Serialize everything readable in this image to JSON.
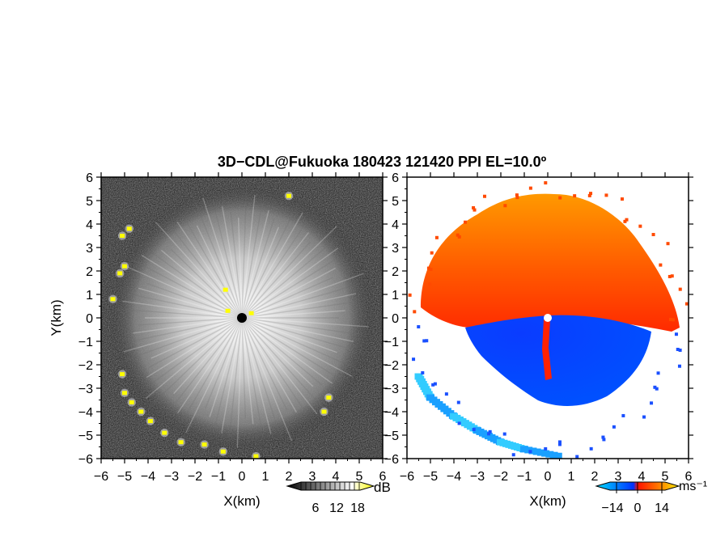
{
  "title": "3D−CDL@Fukuoka 180423 121420 PPI EL=10.0º",
  "chart_data": [
    {
      "type": "heatmap",
      "quantity": "dB",
      "xlabel": "X(km)",
      "ylabel": "Y(km)",
      "xlim": [
        -6,
        6
      ],
      "ylim": [
        -6,
        6
      ],
      "x_ticks": [
        "−6",
        "−5",
        "−4",
        "−3",
        "−2",
        "−1",
        "0",
        "1",
        "2",
        "3",
        "4",
        "5",
        "6"
      ],
      "y_ticks": [
        "−6",
        "−5",
        "−4",
        "−3",
        "−2",
        "−1",
        "0",
        "1",
        "2",
        "3",
        "4",
        "5",
        "6"
      ],
      "colorbar": {
        "unit": "dB",
        "ticks": [
          "6",
          "12",
          "18"
        ],
        "range": [
          0,
          24
        ],
        "colors": [
          "#000000",
          "#ffffff",
          "#ffff00"
        ]
      },
      "features": {
        "radar_center": [
          0,
          0
        ],
        "data_radius_km": 5.4,
        "high_echo_points": [
          [
            -5.1,
            3.5
          ],
          [
            -4.8,
            3.8
          ],
          [
            -5.0,
            2.2
          ],
          [
            -5.2,
            1.9
          ],
          [
            -5.5,
            0.8
          ],
          [
            -5.1,
            -2.4
          ],
          [
            -5.0,
            -3.2
          ],
          [
            -4.7,
            -3.6
          ],
          [
            -4.3,
            -4.0
          ],
          [
            -3.9,
            -4.4
          ],
          [
            -3.3,
            -4.9
          ],
          [
            -2.6,
            -5.3
          ],
          [
            -1.6,
            -5.4
          ],
          [
            -0.8,
            -5.7
          ],
          [
            0.6,
            -5.9
          ],
          [
            2.0,
            5.2
          ],
          [
            3.7,
            -3.4
          ],
          [
            3.5,
            -4.0
          ],
          [
            -0.7,
            1.2
          ],
          [
            -0.6,
            0.3
          ],
          [
            0.4,
            0.2
          ]
        ]
      }
    },
    {
      "type": "heatmap",
      "quantity": "radial velocity",
      "xlabel": "X(km)",
      "xlim": [
        -6,
        6
      ],
      "ylim": [
        -6,
        6
      ],
      "x_ticks": [
        "−6",
        "−5",
        "−4",
        "−3",
        "−2",
        "−1",
        "0",
        "1",
        "2",
        "3",
        "4",
        "5",
        "6"
      ],
      "colorbar": {
        "unit": "ms⁻¹",
        "ticks": [
          "−14",
          "0",
          "14"
        ],
        "range": [
          -21,
          21
        ],
        "colors": [
          "#00ccff",
          "#0033ff",
          "#ff2200",
          "#ffcc00"
        ]
      },
      "features": {
        "radar_center": [
          0,
          0
        ],
        "receding_region": "north half, approx. +5 to +14 ms⁻¹",
        "approaching_region": "south-east, approx. −5 to −14 ms⁻¹",
        "sw_arc_points": [
          [
            -5.5,
            -2.5
          ],
          [
            -5.0,
            -3.4
          ],
          [
            -4.0,
            -4.2
          ],
          [
            -3.0,
            -4.8
          ],
          [
            -2.0,
            -5.3
          ],
          [
            -1.0,
            -5.6
          ],
          [
            0.5,
            -5.9
          ]
        ]
      }
    }
  ]
}
